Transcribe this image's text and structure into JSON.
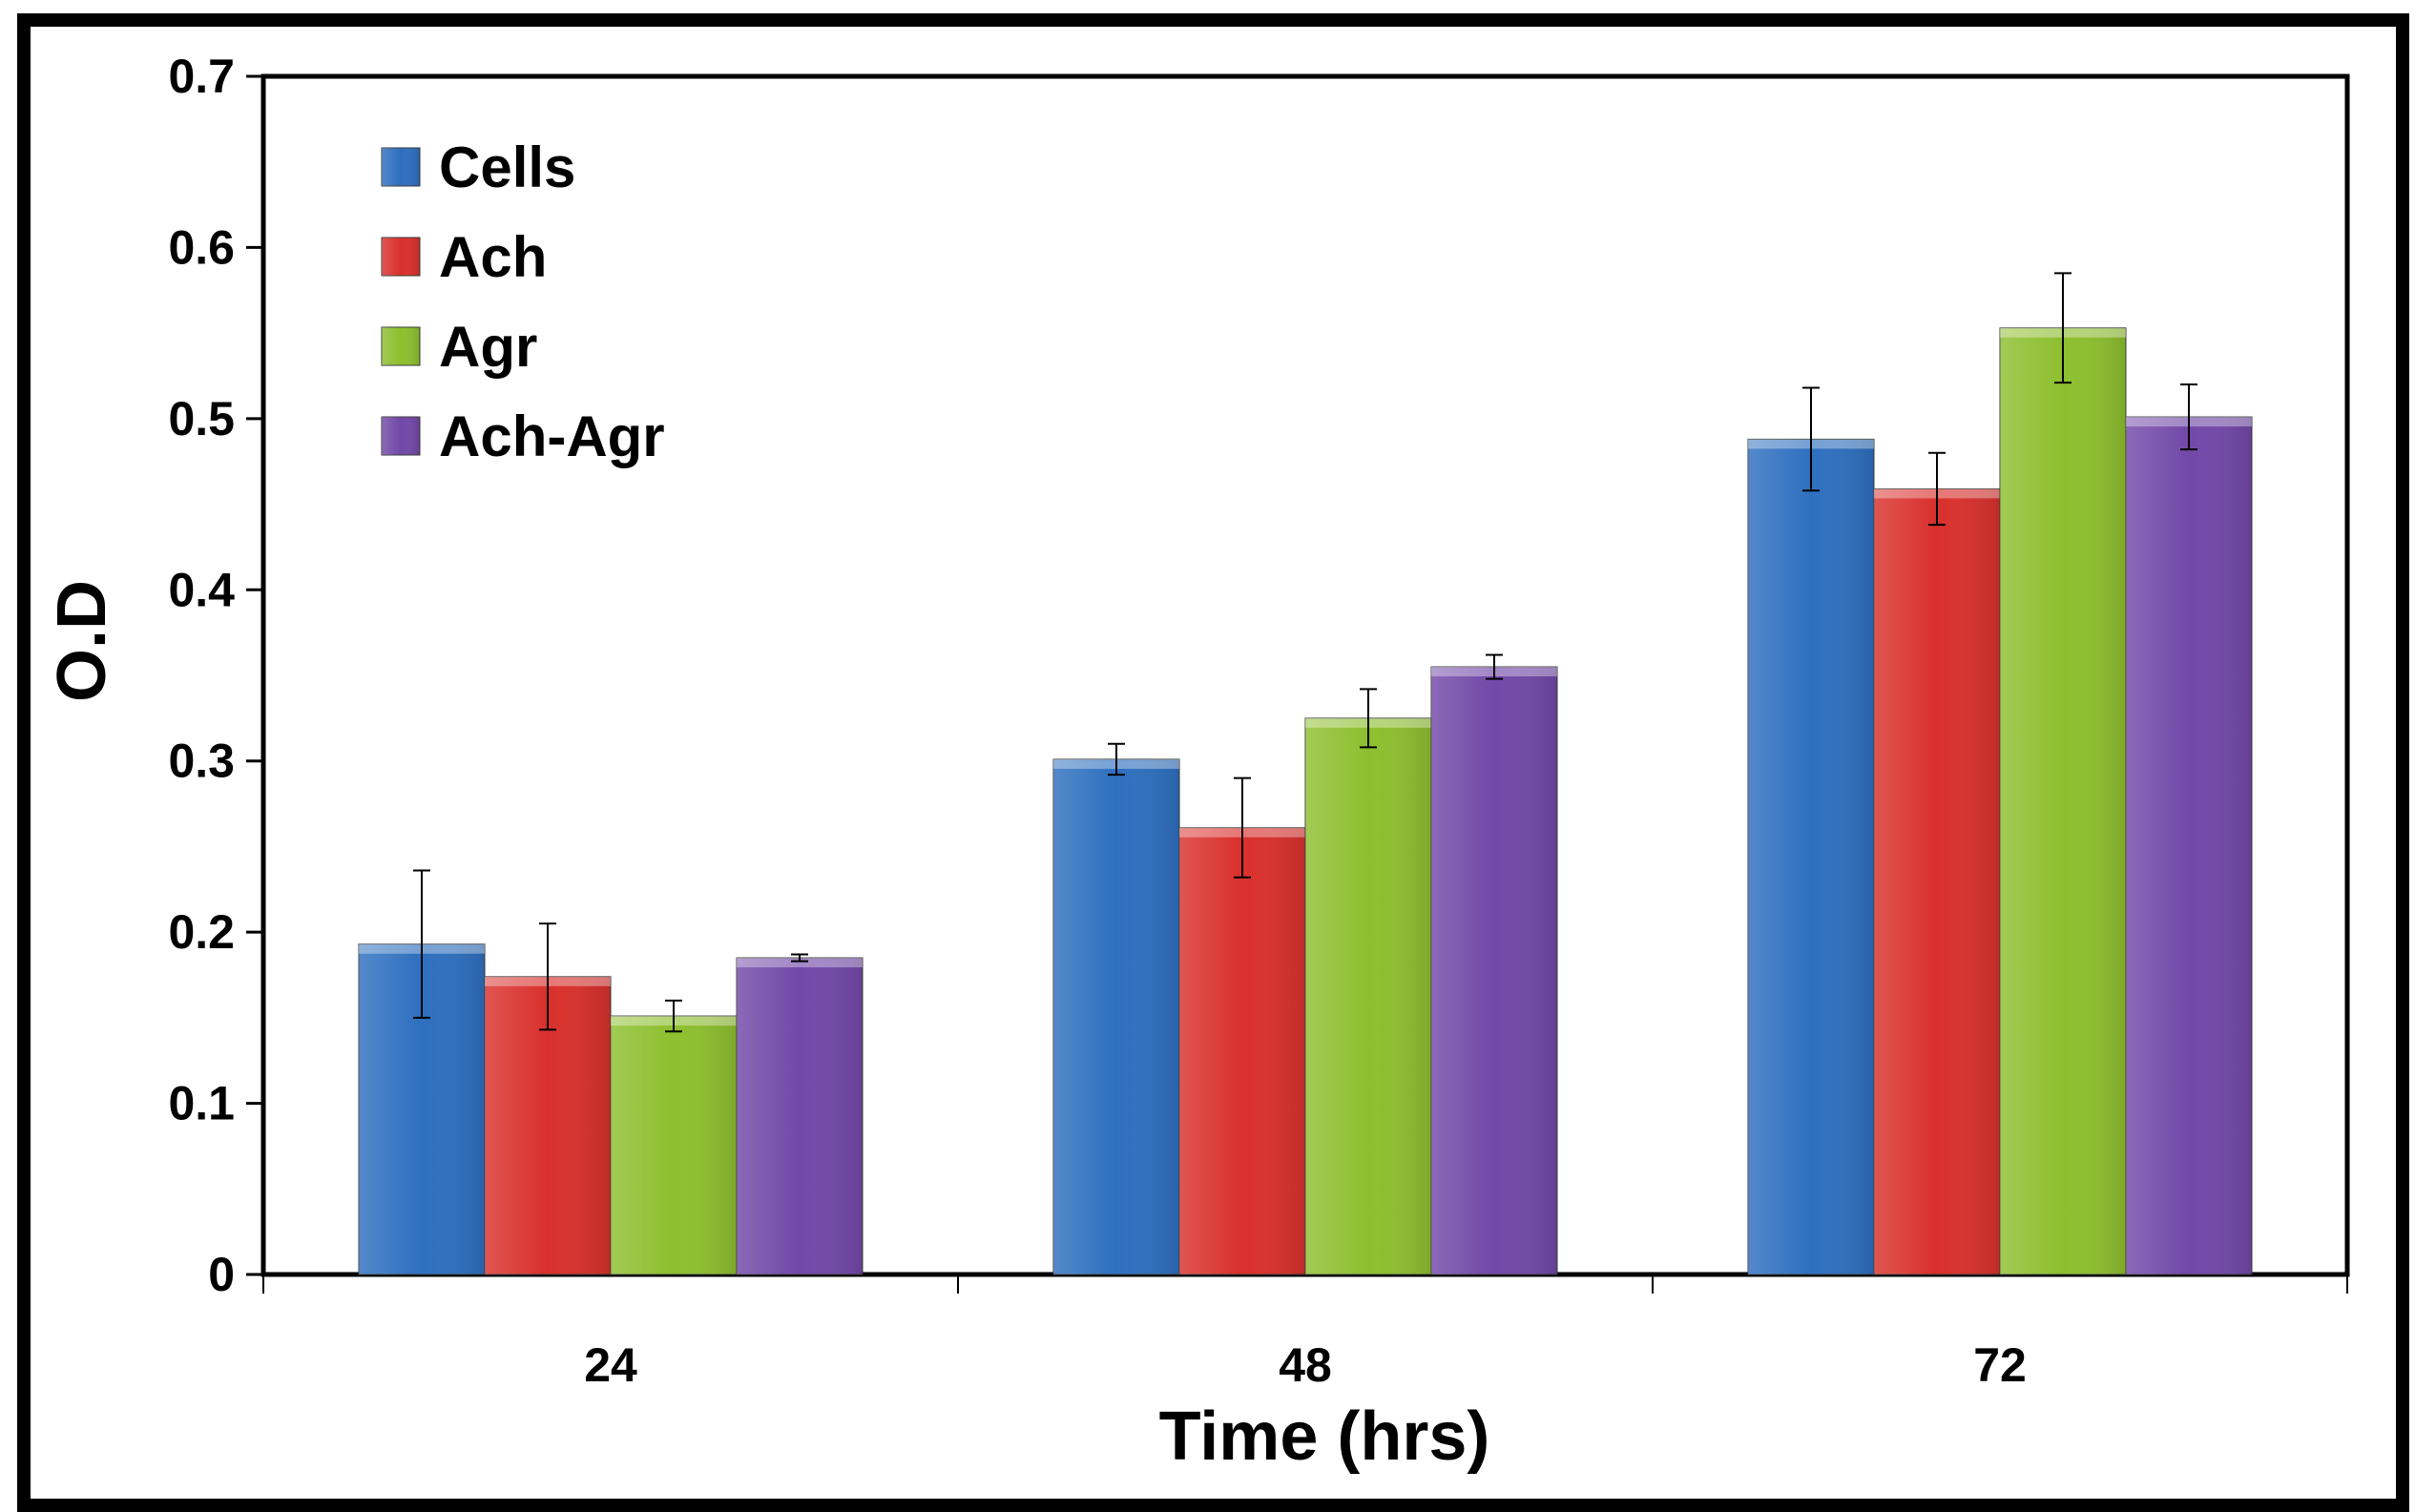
{
  "chart_data": {
    "type": "bar",
    "title": "",
    "xlabel": "Time (hrs)",
    "ylabel": "O.D",
    "categories": [
      "24",
      "48",
      "72"
    ],
    "ylim": [
      0,
      0.7
    ],
    "yticks": [
      "0",
      "0.1",
      "0.2",
      "0.3",
      "0.4",
      "0.5",
      "0.6",
      "0.7"
    ],
    "grid": false,
    "legend_position": "top-left",
    "series": [
      {
        "name": "Cells",
        "color": "#2E6FBF",
        "values": [
          0.193,
          0.301,
          0.488
        ],
        "errors": [
          0.043,
          0.009,
          0.03
        ]
      },
      {
        "name": "Ach",
        "color": "#D9302C",
        "values": [
          0.174,
          0.261,
          0.459
        ],
        "errors": [
          0.031,
          0.029,
          0.021
        ]
      },
      {
        "name": "Agr",
        "color": "#8DBF2E",
        "values": [
          0.151,
          0.325,
          0.553
        ],
        "errors": [
          0.009,
          0.017,
          0.032
        ]
      },
      {
        "name": "Ach-Agr",
        "color": "#7248A8",
        "values": [
          0.185,
          0.355,
          0.501
        ],
        "errors": [
          0.002,
          0.007,
          0.019
        ]
      }
    ]
  }
}
